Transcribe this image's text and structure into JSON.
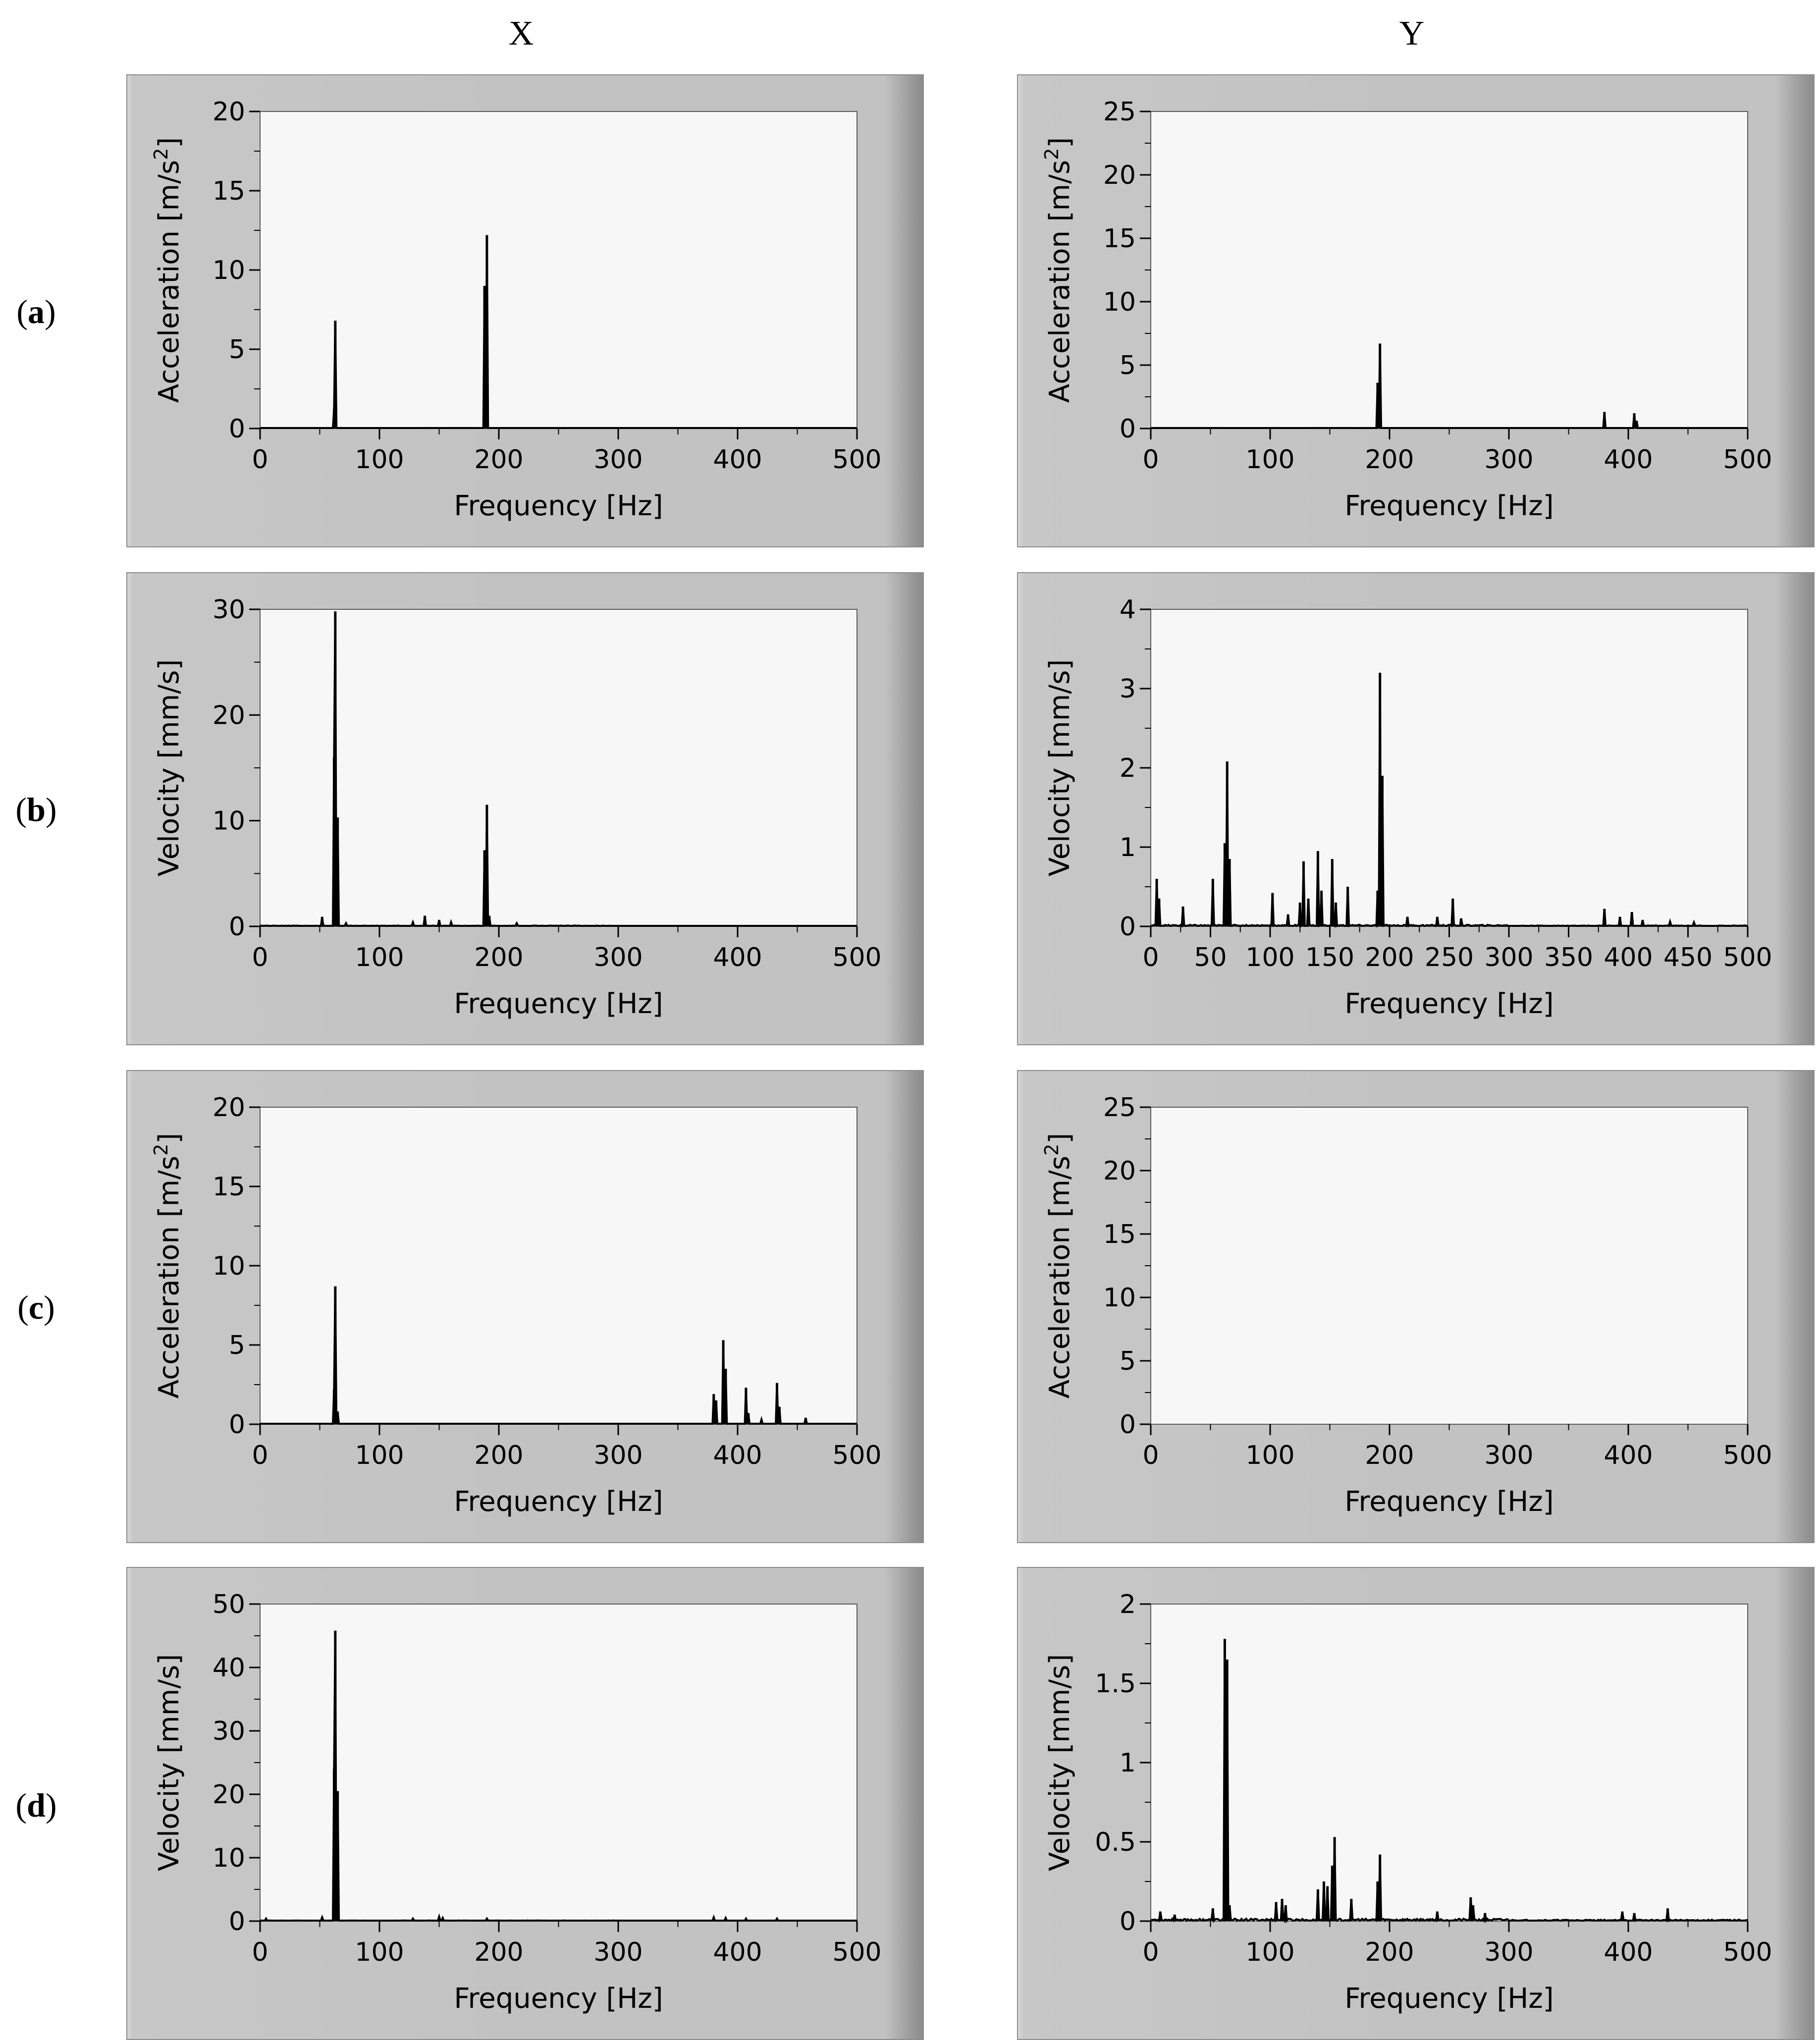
{
  "columns": [
    "X",
    "Y"
  ],
  "rows": [
    {
      "label": "a"
    },
    {
      "label": "b"
    },
    {
      "label": "c"
    },
    {
      "label": "d"
    }
  ],
  "chart_data": [
    {
      "id": "a-x",
      "type": "line",
      "ylabel": "Acceleration [m/s²]",
      "xlabel": "Frequency [Hz]",
      "xlim": [
        0,
        500
      ],
      "ylim": [
        0,
        20
      ],
      "xticks": [
        0,
        100,
        200,
        300,
        400,
        500
      ],
      "yticks": [
        0,
        5,
        10,
        15,
        20
      ],
      "peaks": [
        [
          62,
          1.2
        ],
        [
          63,
          6.8
        ],
        [
          188,
          9.0
        ],
        [
          190,
          12.2
        ]
      ],
      "noise": 0
    },
    {
      "id": "a-y",
      "type": "line",
      "ylabel": "Acceleration [m/s²]",
      "xlabel": "Frequency [Hz]",
      "xlim": [
        0,
        500
      ],
      "ylim": [
        0,
        25
      ],
      "xticks": [
        0,
        100,
        200,
        300,
        400,
        500
      ],
      "yticks": [
        0,
        5,
        10,
        15,
        20,
        25
      ],
      "peaks": [
        [
          190,
          3.6
        ],
        [
          192,
          6.7
        ],
        [
          380,
          1.3
        ],
        [
          405,
          1.2
        ],
        [
          407,
          0.6
        ]
      ],
      "noise": 0
    },
    {
      "id": "b-x",
      "type": "line",
      "ylabel": "Velocity [mm/s]",
      "xlabel": "Frequency [Hz]",
      "xlim": [
        0,
        500
      ],
      "ylim": [
        0,
        30
      ],
      "xticks": [
        0,
        100,
        200,
        300,
        400,
        500
      ],
      "yticks": [
        0,
        10,
        20,
        30
      ],
      "peaks": [
        [
          52,
          0.9
        ],
        [
          62,
          16.0
        ],
        [
          63,
          29.8
        ],
        [
          65,
          10.3
        ],
        [
          72,
          0.3
        ],
        [
          128,
          0.4
        ],
        [
          138,
          1.0
        ],
        [
          150,
          0.6
        ],
        [
          160,
          0.4
        ],
        [
          188,
          7.2
        ],
        [
          190,
          11.5
        ],
        [
          192,
          1.0
        ],
        [
          215,
          0.3
        ]
      ],
      "noise": 0.08
    },
    {
      "id": "b-y",
      "type": "line",
      "ylabel": "Velocity [mm/s]",
      "xlabel": "Frequency [Hz]",
      "xlim": [
        0,
        500
      ],
      "ylim": [
        0,
        4
      ],
      "xticks": [
        0,
        50,
        100,
        150,
        200,
        250,
        300,
        350,
        400,
        450,
        500
      ],
      "yticks": [
        0,
        1,
        2,
        3,
        4
      ],
      "peaks": [
        [
          5,
          0.6
        ],
        [
          7,
          0.35
        ],
        [
          27,
          0.25
        ],
        [
          52,
          0.6
        ],
        [
          62,
          1.05
        ],
        [
          64,
          2.08
        ],
        [
          66,
          0.85
        ],
        [
          102,
          0.42
        ],
        [
          115,
          0.15
        ],
        [
          125,
          0.3
        ],
        [
          128,
          0.82
        ],
        [
          132,
          0.35
        ],
        [
          140,
          0.95
        ],
        [
          143,
          0.45
        ],
        [
          152,
          0.85
        ],
        [
          155,
          0.3
        ],
        [
          165,
          0.5
        ],
        [
          190,
          0.45
        ],
        [
          192,
          3.2
        ],
        [
          194,
          1.9
        ],
        [
          215,
          0.12
        ],
        [
          240,
          0.12
        ],
        [
          253,
          0.35
        ],
        [
          260,
          0.1
        ],
        [
          380,
          0.22
        ],
        [
          393,
          0.12
        ],
        [
          403,
          0.18
        ],
        [
          412,
          0.08
        ],
        [
          435,
          0.06
        ],
        [
          455,
          0.05
        ]
      ],
      "noise": 0.02
    },
    {
      "id": "c-x",
      "type": "line",
      "ylabel": "Acceleration [m/s²]",
      "xlabel": "Frequency [Hz]",
      "xlim": [
        0,
        500
      ],
      "ylim": [
        0,
        20
      ],
      "xticks": [
        0,
        100,
        200,
        300,
        400,
        500
      ],
      "yticks": [
        0,
        5,
        10,
        15,
        20
      ],
      "peaks": [
        [
          62,
          2.2
        ],
        [
          63,
          8.7
        ],
        [
          65,
          0.8
        ],
        [
          380,
          1.9
        ],
        [
          382,
          1.5
        ],
        [
          388,
          5.3
        ],
        [
          390,
          3.5
        ],
        [
          407,
          2.3
        ],
        [
          409,
          0.7
        ],
        [
          420,
          0.3
        ],
        [
          433,
          2.6
        ],
        [
          435,
          1.1
        ],
        [
          457,
          0.4
        ]
      ],
      "noise": 0
    },
    {
      "id": "c-y",
      "type": "line",
      "ylabel": "Acceleration [m/s²]",
      "xlabel": "Frequency [Hz]",
      "xlim": [
        0,
        500
      ],
      "ylim": [
        0,
        25
      ],
      "xticks": [
        0,
        100,
        200,
        300,
        400,
        500
      ],
      "yticks": [
        0,
        5,
        10,
        15,
        20,
        25
      ],
      "peaks": [],
      "noise": 0
    },
    {
      "id": "d-x",
      "type": "line",
      "ylabel": "Velocity [mm/s]",
      "xlabel": "Frequency [Hz]",
      "xlim": [
        0,
        500
      ],
      "ylim": [
        0,
        50
      ],
      "xticks": [
        0,
        100,
        200,
        300,
        400,
        500
      ],
      "yticks": [
        0,
        10,
        20,
        30,
        40,
        50
      ],
      "peaks": [
        [
          5,
          0.4
        ],
        [
          52,
          0.6
        ],
        [
          62,
          24.0
        ],
        [
          63,
          45.8
        ],
        [
          65,
          20.5
        ],
        [
          128,
          0.4
        ],
        [
          150,
          0.7
        ],
        [
          153,
          0.5
        ],
        [
          190,
          0.4
        ],
        [
          380,
          0.6
        ],
        [
          390,
          0.5
        ],
        [
          407,
          0.4
        ],
        [
          433,
          0.4
        ]
      ],
      "noise": 0.1
    },
    {
      "id": "d-y",
      "type": "line",
      "ylabel": "Velocity [mm/s]",
      "xlabel": "Frequency [Hz]",
      "xlim": [
        0,
        500
      ],
      "ylim": [
        0,
        2
      ],
      "xticks": [
        0,
        100,
        200,
        300,
        400,
        500
      ],
      "yticks": [
        0,
        0.5,
        1,
        1.5,
        2
      ],
      "ytickLabels": [
        "0",
        "0.5",
        "1",
        "1.5",
        "2"
      ],
      "peaks": [
        [
          8,
          0.06
        ],
        [
          20,
          0.04
        ],
        [
          52,
          0.08
        ],
        [
          62,
          1.78
        ],
        [
          64,
          1.65
        ],
        [
          66,
          0.1
        ],
        [
          105,
          0.12
        ],
        [
          110,
          0.14
        ],
        [
          113,
          0.1
        ],
        [
          140,
          0.2
        ],
        [
          145,
          0.25
        ],
        [
          148,
          0.22
        ],
        [
          152,
          0.35
        ],
        [
          154,
          0.53
        ],
        [
          168,
          0.14
        ],
        [
          190,
          0.25
        ],
        [
          192,
          0.42
        ],
        [
          240,
          0.06
        ],
        [
          268,
          0.15
        ],
        [
          270,
          0.1
        ],
        [
          280,
          0.05
        ],
        [
          395,
          0.06
        ],
        [
          405,
          0.05
        ],
        [
          433,
          0.08
        ]
      ],
      "noise": 0.015
    }
  ]
}
